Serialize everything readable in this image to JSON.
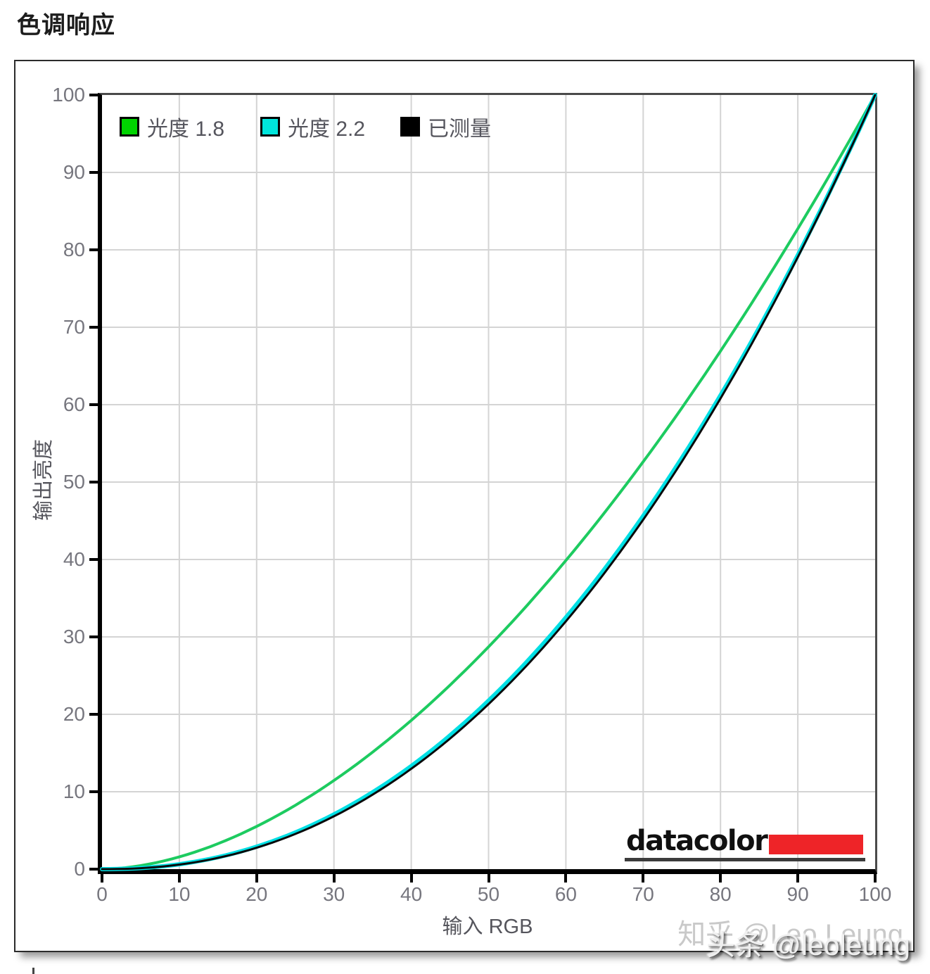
{
  "page": {
    "title": "色调响应"
  },
  "logo": {
    "text": "datacolor",
    "accent_color": "#ee2428",
    "underline_color": "#3c3c3c"
  },
  "watermark": {
    "back": "知乎 @Leo Leung",
    "front": "头条 @leoleung"
  },
  "chart_data": {
    "type": "line",
    "title": "色调响应",
    "xlabel": "输入 RGB",
    "ylabel": "输出亮度",
    "xlim": [
      0,
      100
    ],
    "ylim": [
      0,
      100
    ],
    "xticks": [
      0,
      10,
      20,
      30,
      40,
      50,
      60,
      70,
      80,
      90,
      100
    ],
    "yticks": [
      0,
      10,
      20,
      30,
      40,
      50,
      60,
      70,
      80,
      90,
      100
    ],
    "grid": true,
    "grid_color": "#d4d4d4",
    "legend_position": "top-left-inside",
    "series": [
      {
        "name": "光度 1.8",
        "gamma": 1.8,
        "swatch_color": "#00d400",
        "line_color": "#1dcb60",
        "line_width": 4,
        "x": [
          0,
          10,
          20,
          30,
          40,
          50,
          60,
          70,
          80,
          90,
          100
        ],
        "y": [
          0,
          1.6,
          5.5,
          11.5,
          19.2,
          28.7,
          39.9,
          52.6,
          66.9,
          82.7,
          100
        ]
      },
      {
        "name": "光度 2.2",
        "gamma": 2.2,
        "swatch_color": "#00e5dc",
        "line_color": "#00dfe4",
        "line_width": 6,
        "x": [
          0,
          10,
          20,
          30,
          40,
          50,
          60,
          70,
          80,
          90,
          100
        ],
        "y": [
          0,
          0.6,
          2.9,
          7.1,
          13.3,
          21.8,
          32.5,
          45.6,
          61.2,
          79.3,
          100
        ]
      },
      {
        "name": "已测量",
        "gamma": 2.23,
        "swatch_color": "#000000",
        "line_color": "#0a0a0a",
        "line_width": 3,
        "x": [
          0,
          10,
          20,
          30,
          40,
          50,
          60,
          70,
          80,
          90,
          100
        ],
        "y": [
          0,
          0.6,
          2.8,
          6.9,
          13.0,
          21.4,
          32.1,
          45.2,
          60.9,
          79.1,
          100
        ]
      }
    ]
  }
}
